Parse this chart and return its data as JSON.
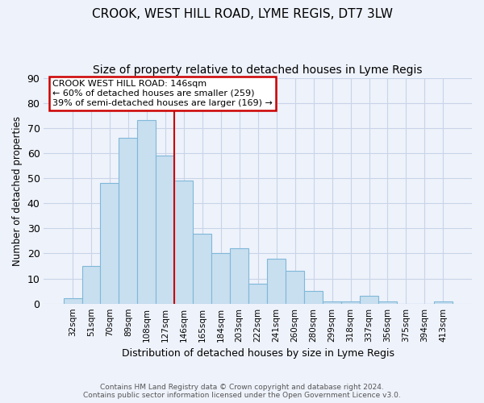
{
  "title": "CROOK, WEST HILL ROAD, LYME REGIS, DT7 3LW",
  "subtitle": "Size of property relative to detached houses in Lyme Regis",
  "xlabel": "Distribution of detached houses by size in Lyme Regis",
  "ylabel": "Number of detached properties",
  "bin_labels": [
    "32sqm",
    "51sqm",
    "70sqm",
    "89sqm",
    "108sqm",
    "127sqm",
    "146sqm",
    "165sqm",
    "184sqm",
    "203sqm",
    "222sqm",
    "241sqm",
    "260sqm",
    "280sqm",
    "299sqm",
    "318sqm",
    "337sqm",
    "356sqm",
    "375sqm",
    "394sqm",
    "413sqm"
  ],
  "bar_heights": [
    2,
    15,
    48,
    66,
    73,
    59,
    49,
    28,
    20,
    22,
    8,
    18,
    13,
    5,
    1,
    1,
    3,
    1,
    0,
    0,
    1
  ],
  "bar_color": "#c8dff0",
  "bar_edge_color": "#7fb8d8",
  "marker_index": 6,
  "marker_label": "146sqm",
  "marker_line_color": "#cc0000",
  "annotation_title": "CROOK WEST HILL ROAD: 146sqm",
  "annotation_line1": "← 60% of detached houses are smaller (259)",
  "annotation_line2": "39% of semi-detached houses are larger (169) →",
  "annotation_box_color": "#ffffff",
  "annotation_box_edge": "#cc0000",
  "ylim": [
    0,
    90
  ],
  "yticks": [
    0,
    10,
    20,
    30,
    40,
    50,
    60,
    70,
    80,
    90
  ],
  "footer_line1": "Contains HM Land Registry data © Crown copyright and database right 2024.",
  "footer_line2": "Contains public sector information licensed under the Open Government Licence v3.0.",
  "background_color": "#eef2fb",
  "plot_background": "#eef2fb",
  "grid_color": "#c8d4e8",
  "title_fontsize": 11,
  "subtitle_fontsize": 10
}
